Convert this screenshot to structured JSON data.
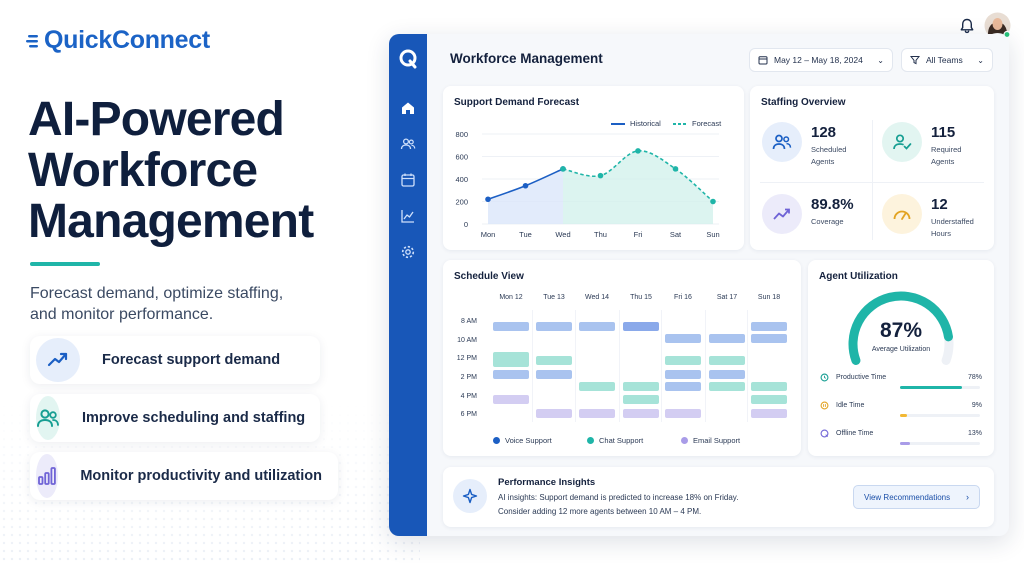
{
  "brand": {
    "name": "QuickConnect"
  },
  "hero": {
    "title_lines": [
      "AI-Powered",
      "Workforce",
      "Management"
    ],
    "subtitle_lines": [
      "Forecast demand, optimize staffing,",
      "and monitor performance."
    ]
  },
  "features": [
    {
      "label": "Forecast support demand",
      "icon": "trend-up-icon"
    },
    {
      "label": "Improve scheduling and staffing",
      "icon": "people-icon"
    },
    {
      "label": "Monitor productivity and utilization",
      "icon": "bar-chart-icon"
    }
  ],
  "topbar": {
    "notification_icon": "bell-icon",
    "avatar": "user-avatar"
  },
  "dashboard": {
    "title": "Workforce Management",
    "date_range": "May 12 – May 18, 2024",
    "team_filter": "All Teams",
    "sidebar_items": [
      "home-icon",
      "agents-icon",
      "calendar-icon",
      "analytics-icon",
      "settings-icon"
    ]
  },
  "forecast": {
    "title": "Support Demand Forecast",
    "legend": {
      "historical": "Historical",
      "forecast": "Forecast"
    }
  },
  "chart_data": {
    "type": "line",
    "title": "Support Demand Forecast",
    "categories": [
      "Mon",
      "Tue",
      "Wed",
      "Thu",
      "Fri",
      "Sat",
      "Sun"
    ],
    "series": [
      {
        "name": "Historical",
        "values": [
          220,
          340,
          490,
          null,
          null,
          null,
          null
        ],
        "color": "#1c5fc4"
      },
      {
        "name": "Forecast",
        "values": [
          null,
          null,
          490,
          430,
          650,
          490,
          200
        ],
        "color": "#1fb5a8"
      }
    ],
    "y_ticks": [
      0,
      200,
      400,
      600,
      800
    ],
    "ylim": [
      0,
      800
    ],
    "legend_position": "top-right",
    "grid": true
  },
  "staffing": {
    "title": "Staffing Overview",
    "stats": [
      {
        "value": "128",
        "label": "Scheduled Agents",
        "icon": "agents-icon"
      },
      {
        "value": "115",
        "label": "Required Agents",
        "icon": "user-check-icon"
      },
      {
        "value": "89.8%",
        "label": "Coverage",
        "icon": "trend-up-icon"
      },
      {
        "value": "12",
        "label": "Understaffed Hours",
        "icon": "gauge-icon"
      }
    ]
  },
  "schedule": {
    "title": "Schedule View",
    "days": [
      "Mon 12",
      "Tue 13",
      "Wed 14",
      "Thu 15",
      "Fri 16",
      "Sat 17",
      "Sun 18"
    ],
    "times": [
      "8 AM",
      "10 AM",
      "12 PM",
      "2 PM",
      "4 PM",
      "6 PM"
    ],
    "legend": [
      "Voice Support",
      "Chat Support",
      "Email Support"
    ],
    "colors": {
      "voice": "#a9c3ef",
      "chat": "#a6e3d8",
      "email": "#d3cdf2"
    }
  },
  "utilization": {
    "title": "Agent Utilization",
    "value": "87%",
    "percent": 87,
    "caption": "Average Utilization",
    "rows": [
      {
        "label": "Productive Time",
        "value": "78%",
        "percent": 78,
        "color": "#1fb5a8",
        "icon": "clock-icon"
      },
      {
        "label": "Idle Time",
        "value": "9%",
        "percent": 9,
        "color": "#f2b833",
        "icon": "pause-icon"
      },
      {
        "label": "Offline Time",
        "value": "13%",
        "percent": 13,
        "color": "#a99ce8",
        "icon": "offline-icon"
      }
    ]
  },
  "insights": {
    "title": "Performance Insights",
    "line1": "AI insights: Support demand is predicted to increase 18% on Friday.",
    "line2": "Consider adding 12 more agents between 10 AM – 4 PM.",
    "button": "View Recommendations"
  }
}
